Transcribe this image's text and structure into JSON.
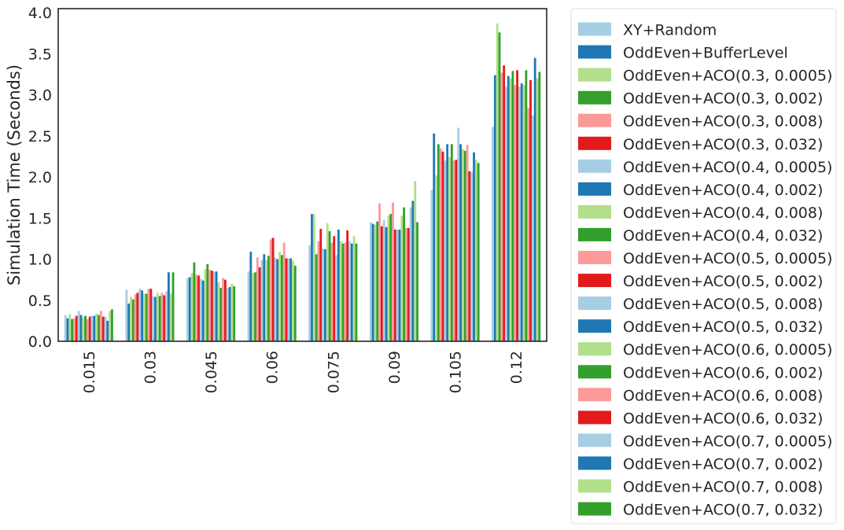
{
  "chart_data": {
    "type": "bar",
    "ylabel": "Simulation Time (Seconds)",
    "xlabel": "",
    "ylim": [
      0,
      4.05
    ],
    "yticks": [
      "0.0",
      "0.5",
      "1.0",
      "1.5",
      "2.0",
      "2.5",
      "3.0",
      "3.5",
      "4.0"
    ],
    "categories": [
      "0.015",
      "0.03",
      "0.045",
      "0.06",
      "0.075",
      "0.09",
      "0.105",
      "0.12"
    ],
    "legend_position": "outside-right",
    "grid": false,
    "series": [
      {
        "name": "XY+Random",
        "color": "#a6cee3",
        "values": [
          0.32,
          0.63,
          0.77,
          0.85,
          1.17,
          1.45,
          1.84,
          2.61
        ]
      },
      {
        "name": "OddEven+BufferLevel",
        "color": "#1f78b4",
        "values": [
          0.28,
          0.46,
          0.78,
          1.09,
          1.55,
          1.43,
          2.53,
          3.24
        ]
      },
      {
        "name": "OddEven+ACO(0.3, 0.0005)",
        "color": "#b2df8a",
        "values": [
          0.33,
          0.54,
          0.83,
          0.83,
          1.55,
          1.42,
          2.02,
          3.87
        ]
      },
      {
        "name": "OddEven+ACO(0.3, 0.002)",
        "color": "#33a02c",
        "values": [
          0.27,
          0.51,
          0.96,
          0.84,
          1.06,
          1.46,
          2.4,
          3.76
        ]
      },
      {
        "name": "OddEven+ACO(0.3, 0.008)",
        "color": "#fb9a99",
        "values": [
          0.28,
          0.57,
          0.81,
          1.02,
          1.22,
          1.68,
          2.35,
          3.27
        ]
      },
      {
        "name": "OddEven+ACO(0.3, 0.032)",
        "color": "#e31a1c",
        "values": [
          0.31,
          0.59,
          0.8,
          0.9,
          1.37,
          1.4,
          2.31,
          3.36
        ]
      },
      {
        "name": "OddEven+ACO(0.4, 0.0005)",
        "color": "#a6cee3",
        "values": [
          0.37,
          0.64,
          0.76,
          0.99,
          1.13,
          1.48,
          2.2,
          3.1
        ]
      },
      {
        "name": "OddEven+ACO(0.4, 0.002)",
        "color": "#1f78b4",
        "values": [
          0.32,
          0.62,
          0.74,
          1.06,
          1.12,
          1.39,
          2.4,
          3.23
        ]
      },
      {
        "name": "OddEven+ACO(0.4, 0.008)",
        "color": "#b2df8a",
        "values": [
          0.29,
          0.58,
          0.88,
          0.99,
          1.44,
          1.53,
          2.24,
          3.2
        ]
      },
      {
        "name": "OddEven+ACO(0.4, 0.032)",
        "color": "#33a02c",
        "values": [
          0.31,
          0.58,
          0.94,
          1.04,
          1.34,
          1.55,
          2.4,
          3.29
        ]
      },
      {
        "name": "OddEven+ACO(0.5, 0.0005)",
        "color": "#fb9a99",
        "values": [
          0.27,
          0.64,
          0.87,
          1.24,
          1.2,
          1.69,
          2.2,
          3.12
        ]
      },
      {
        "name": "OddEven+ACO(0.5, 0.002)",
        "color": "#e31a1c",
        "values": [
          0.3,
          0.64,
          0.86,
          1.26,
          1.28,
          1.36,
          2.21,
          3.3
        ]
      },
      {
        "name": "OddEven+ACO(0.5, 0.008)",
        "color": "#a6cee3",
        "values": [
          0.31,
          0.55,
          0.85,
          1.02,
          1.05,
          1.36,
          2.6,
          3.1
        ]
      },
      {
        "name": "OddEven+ACO(0.5, 0.032)",
        "color": "#1f78b4",
        "values": [
          0.31,
          0.54,
          0.85,
          1.0,
          1.36,
          1.36,
          2.4,
          3.14
        ]
      },
      {
        "name": "OddEven+ACO(0.6, 0.0005)",
        "color": "#b2df8a",
        "values": [
          0.34,
          0.59,
          0.72,
          1.09,
          1.22,
          1.53,
          2.34,
          3.12
        ]
      },
      {
        "name": "OddEven+ACO(0.6, 0.002)",
        "color": "#33a02c",
        "values": [
          0.32,
          0.55,
          0.65,
          1.05,
          1.19,
          1.63,
          2.32,
          3.3
        ]
      },
      {
        "name": "OddEven+ACO(0.6, 0.008)",
        "color": "#fb9a99",
        "values": [
          0.37,
          0.59,
          0.77,
          1.2,
          1.2,
          1.38,
          2.39,
          2.84
        ]
      },
      {
        "name": "OddEven+ACO(0.6, 0.032)",
        "color": "#e31a1c",
        "values": [
          0.3,
          0.56,
          0.75,
          1.01,
          1.35,
          1.38,
          2.07,
          3.18
        ]
      },
      {
        "name": "OddEven+ACO(0.7, 0.0005)",
        "color": "#a6cee3",
        "values": [
          0.3,
          0.61,
          0.65,
          1.01,
          1.22,
          1.63,
          2.06,
          2.75
        ]
      },
      {
        "name": "OddEven+ACO(0.7, 0.002)",
        "color": "#1f78b4",
        "values": [
          0.25,
          0.84,
          0.66,
          1.01,
          1.19,
          1.71,
          2.3,
          3.45
        ]
      },
      {
        "name": "OddEven+ACO(0.7, 0.008)",
        "color": "#b2df8a",
        "values": [
          0.37,
          0.58,
          0.7,
          0.98,
          1.28,
          1.95,
          2.21,
          3.2
        ]
      },
      {
        "name": "OddEven+ACO(0.7, 0.032)",
        "color": "#33a02c",
        "values": [
          0.39,
          0.84,
          0.67,
          0.92,
          1.19,
          1.45,
          2.17,
          3.28
        ]
      }
    ]
  }
}
